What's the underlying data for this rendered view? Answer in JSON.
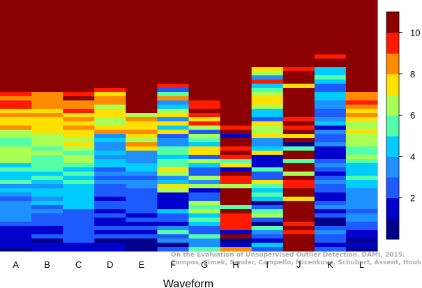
{
  "chart_data": {
    "type": "heatmap",
    "xlabel": "Waveform",
    "categories": [
      "A",
      "B",
      "C",
      "D",
      "E",
      "F",
      "G",
      "H",
      "I",
      "J",
      "K",
      "L"
    ],
    "colorbar": {
      "ticks": [
        2,
        4,
        6,
        8,
        10
      ],
      "range": [
        0,
        11
      ],
      "colors": [
        "#00008B",
        "#0000CD",
        "#1E5BFF",
        "#1E90FF",
        "#00CCFF",
        "#55FFAA",
        "#AAFF55",
        "#FFE000",
        "#FF8C00",
        "#FF1A00",
        "#8B0000"
      ]
    },
    "rows": 60,
    "columns_summary": [
      {
        "name": "A",
        "rank10_cutoff_row": 22,
        "profile": "warm-to-cool"
      },
      {
        "name": "B",
        "rank10_cutoff_row": 22,
        "profile": "warm-to-cool"
      },
      {
        "name": "C",
        "rank10_cutoff_row": 24,
        "profile": "warm-to-cool"
      },
      {
        "name": "D",
        "rank10_cutoff_row": 22,
        "profile": "yellow-band"
      },
      {
        "name": "E",
        "rank10_cutoff_row": 27,
        "profile": "yellow-band"
      },
      {
        "name": "F",
        "rank10_cutoff_row": 21,
        "profile": "mixed"
      },
      {
        "name": "G",
        "rank10_cutoff_row": 27,
        "profile": "mixed"
      },
      {
        "name": "H",
        "rank10_cutoff_row": 30,
        "profile": "dark-red"
      },
      {
        "name": "I",
        "rank10_cutoff_row": 16,
        "profile": "mixed"
      },
      {
        "name": "J",
        "rank10_cutoff_row": 16,
        "profile": "dark-red"
      },
      {
        "name": "K",
        "rank10_cutoff_row": 16,
        "profile": "cool"
      },
      {
        "name": "L",
        "rank10_cutoff_row": 22,
        "profile": "warm-to-cool"
      }
    ]
  },
  "credit_lines": [
    "On the Evaluation of Unsupervised Outlier Detection. DAMI, 2015.",
    "Campos, Zimek, Sander, Campello, Micenková, Schubert, Assent, Houle"
  ]
}
